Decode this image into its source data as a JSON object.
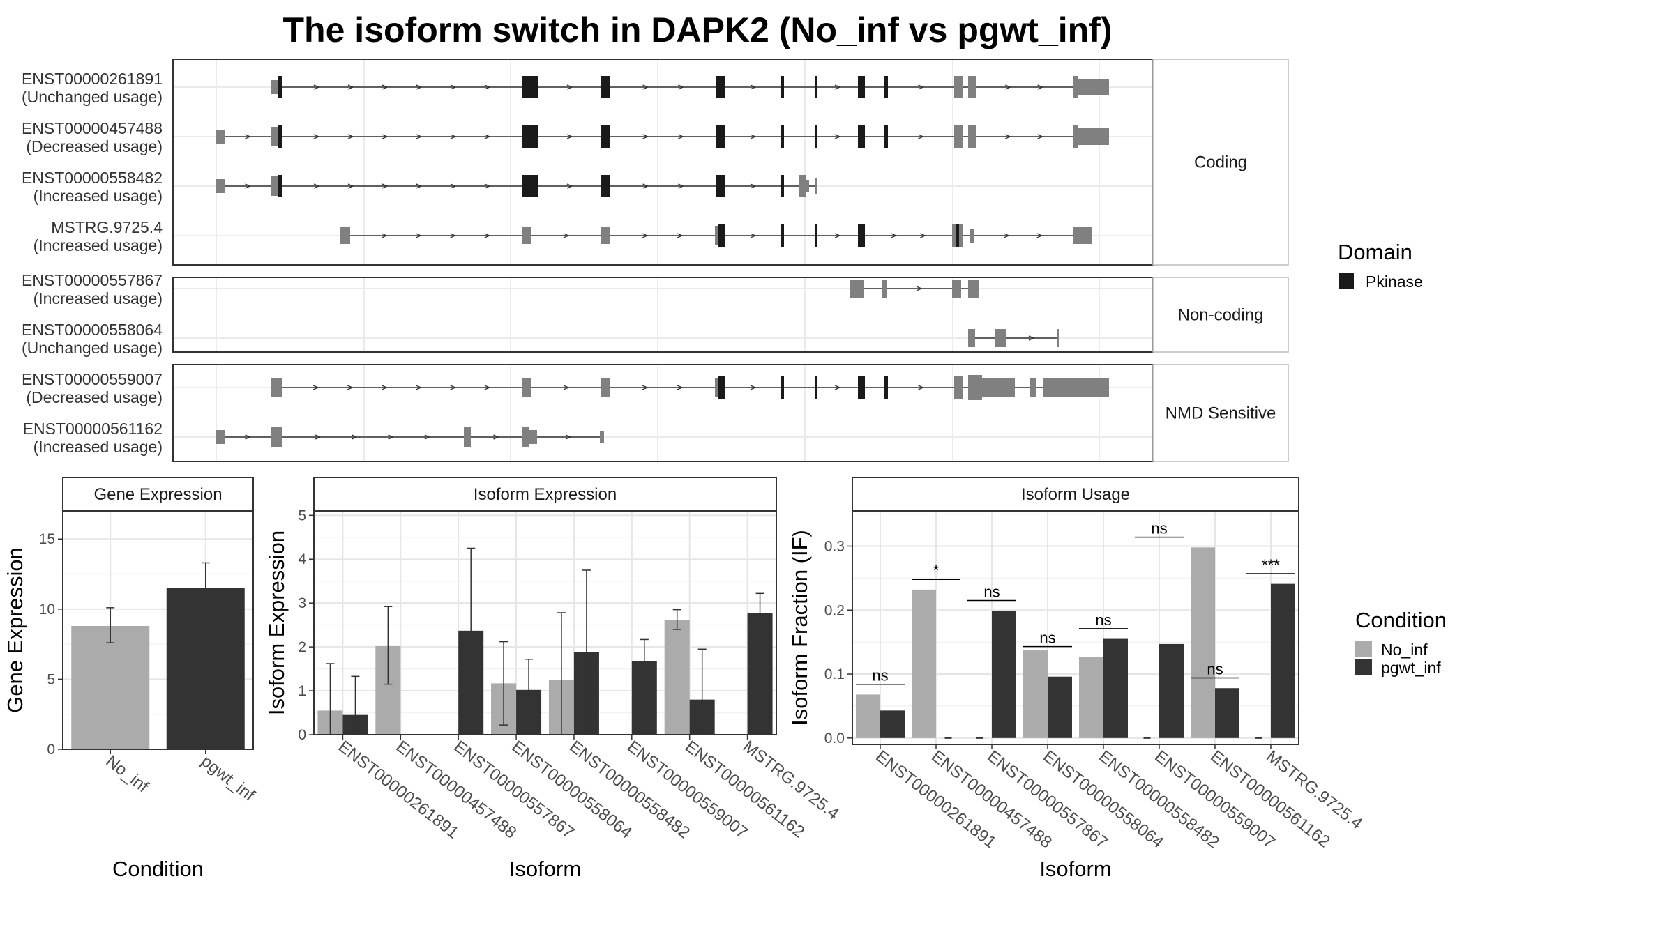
{
  "title": "The isoform switch in DAPK2 (No_inf vs pgwt_inf)",
  "colors": {
    "no_inf": "#ababab",
    "pgwt_inf": "#333333",
    "pkinase": "#1a1a1a",
    "non_domain": "#808080"
  },
  "structure": {
    "groups": [
      {
        "label": "Coding",
        "isoforms": [
          {
            "id": "ENST00000261891",
            "usage": "(Unchanged usage)"
          },
          {
            "id": "ENST00000457488",
            "usage": "(Decreased usage)"
          },
          {
            "id": "ENST00000558482",
            "usage": "(Increased usage)"
          },
          {
            "id": "MSTRG.9725.4",
            "usage": "(Increased usage)"
          }
        ]
      },
      {
        "label": "Non-coding",
        "isoforms": [
          {
            "id": "ENST00000557867",
            "usage": "(Increased usage)"
          },
          {
            "id": "ENST00000558064",
            "usage": "(Unchanged usage)"
          }
        ]
      },
      {
        "label": "NMD Sensitive",
        "isoforms": [
          {
            "id": "ENST00000559007",
            "usage": "(Decreased usage)"
          },
          {
            "id": "ENST00000561162",
            "usage": "(Increased usage)"
          }
        ]
      }
    ],
    "legend": {
      "title": "Domain",
      "items": [
        {
          "label": "Pkinase",
          "color": "#1a1a1a"
        }
      ]
    }
  },
  "chart_data": [
    {
      "type": "bar",
      "title": "Gene Expression",
      "xlabel": "Condition",
      "ylabel": "Gene Expression",
      "categories": [
        "No_inf",
        "pgwt_inf"
      ],
      "values": [
        8.8,
        11.5
      ],
      "error_low": [
        7.6,
        9.8
      ],
      "error_high": [
        10.1,
        13.3
      ],
      "ylim": [
        0,
        17
      ],
      "yticks": [
        0,
        5,
        10,
        15
      ]
    },
    {
      "type": "bar",
      "title": "Isoform Expression",
      "xlabel": "Isoform",
      "ylabel": "Isoform Expression",
      "categories": [
        "ENST00000261891",
        "ENST00000457488",
        "ENST00000557867",
        "ENST00000558064",
        "ENST00000558482",
        "ENST00000559007",
        "ENST00000561162",
        "MSTRG.9725.4"
      ],
      "ylim": [
        0,
        5.1
      ],
      "yticks": [
        0,
        1,
        2,
        3,
        4,
        5
      ],
      "series": [
        {
          "name": "No_inf",
          "values": [
            0.55,
            2.02,
            0.0,
            1.17,
            1.25,
            0.0,
            2.62,
            0.0
          ],
          "error_low": [
            0.0,
            1.15,
            null,
            0.22,
            0.0,
            null,
            2.4,
            null
          ],
          "error_high": [
            1.62,
            2.92,
            null,
            2.12,
            2.78,
            null,
            2.85,
            null
          ]
        },
        {
          "name": "pgwt_inf",
          "values": [
            0.45,
            0.0,
            2.37,
            1.02,
            1.88,
            1.67,
            0.8,
            2.77
          ],
          "error_low": [
            0.0,
            null,
            0.5,
            0.33,
            0.0,
            1.17,
            0.0,
            2.32
          ],
          "error_high": [
            1.33,
            null,
            4.25,
            1.72,
            3.75,
            2.17,
            1.95,
            3.22
          ]
        }
      ]
    },
    {
      "type": "bar",
      "title": "Isoform Usage",
      "xlabel": "Isoform",
      "ylabel": "Isoform Fraction (IF)",
      "categories": [
        "ENST00000261891",
        "ENST00000457488",
        "ENST00000557867",
        "ENST00000558064",
        "ENST00000558482",
        "ENST00000559007",
        "ENST00000561162",
        "MSTRG.9725.4"
      ],
      "ylim": [
        -0.01,
        0.355
      ],
      "yticks": [
        0.0,
        0.1,
        0.2,
        0.3
      ],
      "series": [
        {
          "name": "No_inf",
          "values": [
            0.068,
            0.232,
            0.0,
            0.137,
            0.127,
            0.0,
            0.298,
            0.0
          ]
        },
        {
          "name": "pgwt_inf",
          "values": [
            0.043,
            0.0,
            0.199,
            0.096,
            0.155,
            0.147,
            0.078,
            0.241
          ]
        }
      ],
      "significance": [
        {
          "label": "ns",
          "y": 0.084
        },
        {
          "label": "*",
          "y": 0.248
        },
        {
          "label": "ns",
          "y": 0.215
        },
        {
          "label": "ns",
          "y": 0.143
        },
        {
          "label": "ns",
          "y": 0.171
        },
        {
          "label": "ns",
          "y": 0.314
        },
        {
          "label": "ns",
          "y": 0.094
        },
        {
          "label": "***",
          "y": 0.257
        }
      ]
    }
  ],
  "condition_legend": {
    "title": "Condition",
    "items": [
      {
        "label": "No_inf",
        "color": "#ababab"
      },
      {
        "label": "pgwt_inf",
        "color": "#333333"
      }
    ]
  }
}
